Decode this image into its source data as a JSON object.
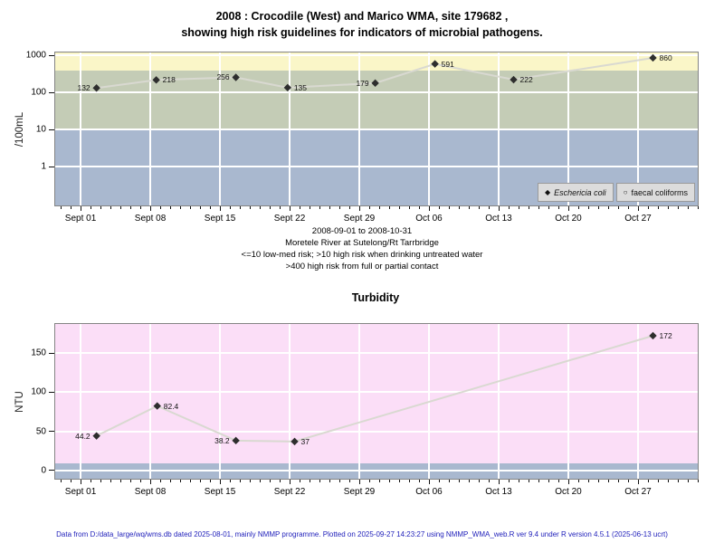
{
  "title": {
    "line1": "2008 : Crocodile (West) and Marico WMA, site 179682 ,",
    "line2": "showing high risk guidelines for indicators of microbial pathogens."
  },
  "footer": "Data from D:/data_large/wq/wms.db dated 2025-08-01, mainly NMMP programme. Plotted on 2025-09-27 14:23:27 using NMMP_WMA_web.R ver 9.4 under R version 4.5.1 (2025-06-13 ucrt)",
  "colors": {
    "band_yellow": "#faf6c8",
    "band_green": "#c4ccb6",
    "band_blue": "#a9b8cf",
    "plot_pink": "#fbdef7",
    "line": "#d9d9d1",
    "marker": "#2e2e2e",
    "footer_text": "#2222bb",
    "legend_bg": "#dcdcdc"
  },
  "chart_data": [
    {
      "id": "microbial-pathogens",
      "type": "line",
      "title": "",
      "ylabel": "/100mL",
      "yscale": "log",
      "ylim_log": [
        -1.05,
        3.08
      ],
      "yticks": [
        1,
        10,
        100,
        1000
      ],
      "x_tick_labels": [
        "Sept 01",
        "Sept 08",
        "Sept 15",
        "Sept 22",
        "Sept 29",
        "Oct 06",
        "Oct 13",
        "Oct 20",
        "Oct 27"
      ],
      "x_tick_days": [
        0,
        7,
        14,
        21,
        28,
        35,
        42,
        49,
        56
      ],
      "xlim_days": [
        -2.55,
        62
      ],
      "grid": true,
      "bands": [
        {
          "name": "high-risk-full-or-partial-contact",
          "from": 400,
          "to": "top",
          "color": "#faf6c8"
        },
        {
          "name": "high-risk-drinking-untreated",
          "from": 10,
          "to": 400,
          "color": "#c4ccb6"
        },
        {
          "name": "low-med-risk",
          "from": "bottom",
          "to": 10,
          "color": "#a9b8cf"
        }
      ],
      "series": [
        {
          "name": "Eschericia coli",
          "marker": "filled-diamond",
          "x_days": [
            1.6,
            7.6,
            15.6,
            20.8,
            29.6,
            35.6,
            43.5,
            57.5
          ],
          "values": [
            132,
            218,
            256,
            135,
            179,
            591,
            222,
            860
          ],
          "labels": [
            "132",
            "218",
            "256",
            "135",
            "179",
            "591",
            "222",
            "860"
          ],
          "label_side": [
            "left",
            "right",
            "left",
            "right",
            "left",
            "right",
            "right",
            "right"
          ]
        }
      ],
      "legend": [
        {
          "symbol": "◆",
          "label": "Eschericia coli",
          "italic": true
        },
        {
          "symbol": "○",
          "label": "faecal coliforms",
          "italic": false
        }
      ],
      "legend_position": "bottom-right",
      "subtitle_lines": [
        "2008-09-01 to 2008-10-31",
        "Moretele River at Sutelong/Rt Tarrbridge",
        "<=10 low-med risk; >10 high risk when drinking untreated water",
        ">400 high risk from full or partial contact"
      ]
    },
    {
      "id": "turbidity",
      "type": "line",
      "title": "Turbidity",
      "ylabel": "NTU",
      "yscale": "linear",
      "ylim": [
        -10.5,
        187
      ],
      "yticks": [
        0,
        50,
        100,
        150
      ],
      "x_tick_labels": [
        "Sept 01",
        "Sept 08",
        "Sept 15",
        "Sept 22",
        "Sept 29",
        "Oct 06",
        "Oct 13",
        "Oct 20",
        "Oct 27"
      ],
      "x_tick_days": [
        0,
        7,
        14,
        21,
        28,
        35,
        42,
        49,
        56
      ],
      "xlim_days": [
        -2.55,
        62
      ],
      "grid": true,
      "plot_bg": "#fbdef7",
      "bands": [
        {
          "name": "low-risk-guideline",
          "from": "bottom",
          "to": 9,
          "color": "#a9b8cf"
        }
      ],
      "series": [
        {
          "name": "Turbidity",
          "marker": "filled-diamond",
          "x_days": [
            1.6,
            7.7,
            15.6,
            21.5,
            57.5
          ],
          "values": [
            44.2,
            82.4,
            38.2,
            37,
            172
          ],
          "labels": [
            "44.2",
            "82.4",
            "38.2",
            "37",
            "172"
          ],
          "label_side": [
            "left",
            "right",
            "left",
            "right",
            "right"
          ]
        }
      ]
    }
  ]
}
